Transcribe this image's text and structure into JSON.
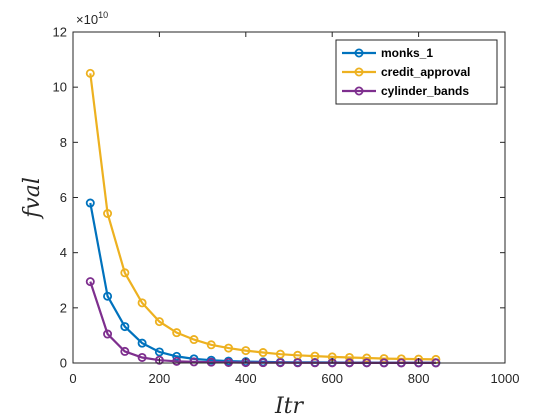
{
  "chart_data": {
    "type": "line",
    "title": "",
    "xlabel": "Itr",
    "ylabel": "fval",
    "y_exponent_label": "×10",
    "y_exponent_power": "10",
    "xlim": [
      0,
      1000
    ],
    "ylim": [
      0,
      12
    ],
    "x_ticks": [
      0,
      200,
      400,
      600,
      800,
      1000
    ],
    "y_ticks": [
      0,
      2,
      4,
      6,
      8,
      10,
      12
    ],
    "grid": false,
    "legend_position": "top-right",
    "x": [
      40,
      80,
      120,
      160,
      200,
      240,
      280,
      320,
      360,
      400,
      440,
      480,
      520,
      560,
      600,
      640,
      680,
      720,
      760,
      800,
      840
    ],
    "series": [
      {
        "name": "monks_1",
        "color": "#0072BD",
        "values": [
          5.8,
          2.42,
          1.32,
          0.72,
          0.4,
          0.24,
          0.15,
          0.1,
          0.07,
          0.05,
          0.04,
          0.03,
          0.025,
          0.02,
          0.018,
          0.016,
          0.014,
          0.012,
          0.011,
          0.01,
          0.01
        ]
      },
      {
        "name": "credit_approval",
        "color": "#EDB120",
        "values": [
          10.5,
          5.42,
          3.27,
          2.18,
          1.5,
          1.1,
          0.85,
          0.66,
          0.54,
          0.45,
          0.38,
          0.32,
          0.28,
          0.25,
          0.22,
          0.2,
          0.18,
          0.16,
          0.15,
          0.14,
          0.13
        ]
      },
      {
        "name": "cylinder_bands",
        "color": "#7E2F8E",
        "values": [
          2.95,
          1.05,
          0.42,
          0.2,
          0.1,
          0.06,
          0.04,
          0.03,
          0.02,
          0.015,
          0.012,
          0.01,
          0.008,
          0.007,
          0.006,
          0.005,
          0.005,
          0.004,
          0.004,
          0.004,
          0.003
        ]
      }
    ]
  }
}
